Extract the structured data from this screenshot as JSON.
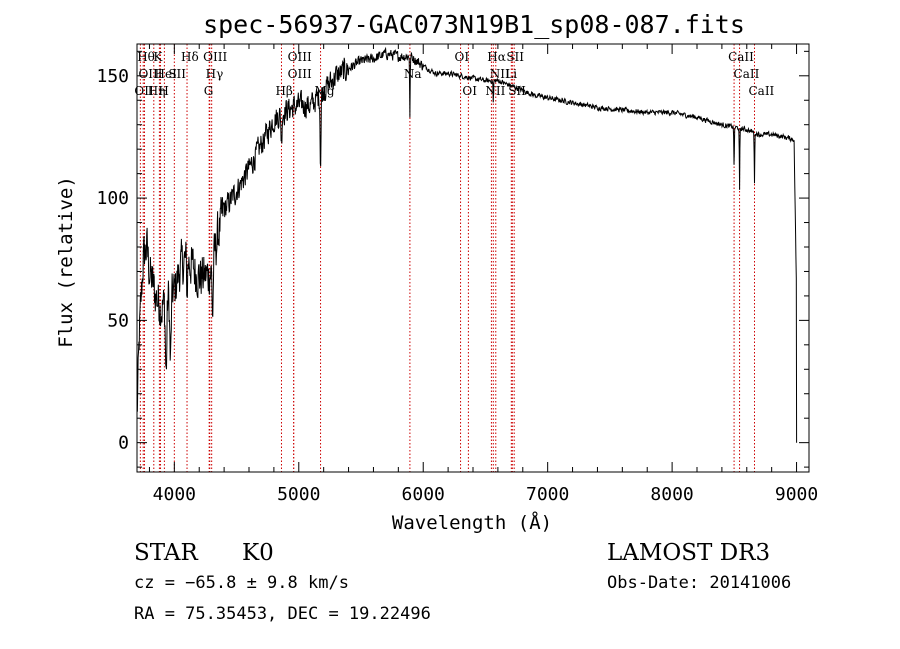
{
  "chart_data": {
    "type": "line",
    "title": "spec-56937-GAC073N19B1_sp08-087.fits",
    "xlabel": "Wavelength (Å)",
    "ylabel": "Flux (relative)",
    "xlim": [
      3700,
      9100
    ],
    "ylim": [
      -12,
      163
    ],
    "xticks": [
      4000,
      5000,
      6000,
      7000,
      8000,
      9000
    ],
    "yticks": [
      0,
      50,
      100,
      150
    ],
    "series": [
      {
        "name": "spectrum",
        "anchors_x": [
          3700,
          3720,
          3750,
          3780,
          3800,
          3850,
          3900,
          3950,
          4000,
          4050,
          4100,
          4150,
          4200,
          4250,
          4300,
          4350,
          4400,
          4500,
          4600,
          4700,
          4800,
          4900,
          5000,
          5100,
          5200,
          5300,
          5400,
          5500,
          5600,
          5700,
          5800,
          5900,
          6000,
          6100,
          6200,
          6300,
          6400,
          6500,
          6600,
          6700,
          6800,
          6900,
          7000,
          7200,
          7400,
          7600,
          7800,
          8000,
          8200,
          8400,
          8500,
          8600,
          8700,
          8800,
          8900,
          8980,
          9000
        ],
        "anchors_y": [
          10,
          45,
          75,
          80,
          70,
          60,
          55,
          60,
          62,
          72,
          75,
          72,
          68,
          68,
          70,
          85,
          95,
          103,
          112,
          122,
          132,
          136,
          138,
          138,
          144,
          150,
          153,
          156,
          157,
          159,
          158,
          158,
          154,
          151,
          151,
          150,
          149,
          148,
          148,
          146,
          144,
          142,
          141,
          139,
          137,
          136,
          135,
          135,
          133,
          130,
          129,
          128,
          126,
          126,
          125,
          124,
          60
        ],
        "noise": [
          {
            "x0": 3700,
            "x1": 4400,
            "amp": 13
          },
          {
            "x0": 4400,
            "x1": 5400,
            "amp": 7
          },
          {
            "x0": 5400,
            "x1": 6000,
            "amp": 3
          },
          {
            "x0": 6000,
            "x1": 9000,
            "amp": 1.4
          }
        ],
        "absorption": [
          {
            "x": 3934,
            "depth": 30,
            "width": 8
          },
          {
            "x": 3969,
            "depth": 28,
            "width": 8
          },
          {
            "x": 4102,
            "depth": 15,
            "width": 5
          },
          {
            "x": 4308,
            "depth": 20,
            "width": 6
          },
          {
            "x": 4861,
            "depth": 12,
            "width": 5
          },
          {
            "x": 5175,
            "depth": 28,
            "width": 5
          },
          {
            "x": 5893,
            "depth": 25,
            "width": 3
          },
          {
            "x": 6563,
            "depth": 10,
            "width": 3
          },
          {
            "x": 8498,
            "depth": 18,
            "width": 3
          },
          {
            "x": 8542,
            "depth": 26,
            "width": 3
          },
          {
            "x": 8662,
            "depth": 20,
            "width": 3
          }
        ]
      }
    ],
    "lines": [
      {
        "label": "OII",
        "x": 3727,
        "row": 2
      },
      {
        "label": "Hθ",
        "x": 3750,
        "row": 0
      },
      {
        "label": "OIII",
        "x": 3760,
        "row": 1
      },
      {
        "label": "Hη",
        "x": 3835,
        "row": 2
      },
      {
        "label": "K",
        "x": 3880,
        "row": 0
      },
      {
        "label": "HeI",
        "x": 3889,
        "row": 1
      },
      {
        "label": "H",
        "x": 3920,
        "row": 2
      },
      {
        "label": "SII",
        "x": 4000,
        "row": 1
      },
      {
        "label": "Hδ",
        "x": 4102,
        "row": 0
      },
      {
        "label": "OIII",
        "x": 4280,
        "row": 0
      },
      {
        "label": "Hγ",
        "x": 4300,
        "row": 1
      },
      {
        "label": "G",
        "x": 4285,
        "row": 2
      },
      {
        "label": "Hβ",
        "x": 4861,
        "row": 2
      },
      {
        "label": "OIII",
        "x": 4959,
        "row": 0
      },
      {
        "label": "OIII",
        "x": 4959,
        "row": 1
      },
      {
        "label": "Mg",
        "x": 5175,
        "row": 2
      },
      {
        "label": "Na",
        "x": 5893,
        "row": 1
      },
      {
        "label": "OI",
        "x": 6300,
        "row": 0
      },
      {
        "label": "OI",
        "x": 6363,
        "row": 2
      },
      {
        "label": "Hα",
        "x": 6563,
        "row": 0
      },
      {
        "label": "NII",
        "x": 6583,
        "row": 1
      },
      {
        "label": "NII",
        "x": 6548,
        "row": 2
      },
      {
        "label": "SII",
        "x": 6716,
        "row": 0
      },
      {
        "label": "Li",
        "x": 6708,
        "row": 1
      },
      {
        "label": "SII",
        "x": 6731,
        "row": 2
      },
      {
        "label": "CaII",
        "x": 8498,
        "row": 0
      },
      {
        "label": "CaII",
        "x": 8542,
        "row": 1
      },
      {
        "label": "CaII",
        "x": 8662,
        "row": 2
      }
    ]
  },
  "info": {
    "class_label": "STAR",
    "subclass": "K0",
    "survey": "LAMOST DR3",
    "cz": "cz = −65.8 ± 9.8 km/s",
    "obs_date": "Obs-Date: 20141006",
    "radec": "RA =  75.35453, DEC =  19.22496"
  },
  "colors": {
    "line_marker": "#cc0000",
    "spectrum": "#000000",
    "axes": "#000000"
  }
}
